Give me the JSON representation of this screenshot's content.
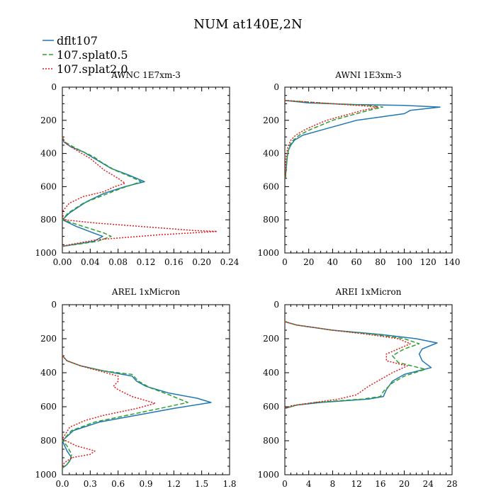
{
  "title": "NUM at140E,2N",
  "legend": [
    {
      "label": "dflt107",
      "color": "#1f77b4",
      "dash": "solid"
    },
    {
      "label": "107.splat0.5",
      "color": "#2ca02c",
      "dash": "dashed"
    },
    {
      "label": "107.splat2.0",
      "color": "#e31a1c",
      "dash": "dotted"
    }
  ],
  "chart_data": [
    {
      "type": "line",
      "title": "AWNC  1E7xm-3",
      "xlim": [
        0,
        0.24
      ],
      "ylim": [
        0,
        1000
      ],
      "y_inverted": true,
      "xticks": [
        "0.00",
        "0.04",
        "0.08",
        "0.12",
        "0.16",
        "0.20",
        "0.24"
      ],
      "yticks": [
        "0",
        "200",
        "400",
        "600",
        "800",
        "1000"
      ],
      "series": [
        {
          "name": "dflt107",
          "points": [
            [
              0,
              300
            ],
            [
              0.002,
              330
            ],
            [
              0.012,
              360
            ],
            [
              0.03,
              390
            ],
            [
              0.05,
              440
            ],
            [
              0.07,
              490
            ],
            [
              0.095,
              530
            ],
            [
              0.118,
              570
            ],
            [
              0.09,
              600
            ],
            [
              0.06,
              640
            ],
            [
              0.035,
              690
            ],
            [
              0.01,
              760
            ],
            [
              0,
              800
            ],
            [
              0.02,
              840
            ],
            [
              0.045,
              880
            ],
            [
              0.058,
              900
            ],
            [
              0.045,
              930
            ],
            [
              0.015,
              950
            ],
            [
              0,
              960
            ]
          ]
        },
        {
          "name": "107.splat0.5",
          "points": [
            [
              0,
              300
            ],
            [
              0.003,
              330
            ],
            [
              0.02,
              370
            ],
            [
              0.045,
              420
            ],
            [
              0.055,
              450
            ],
            [
              0.075,
              500
            ],
            [
              0.098,
              540
            ],
            [
              0.113,
              570
            ],
            [
              0.085,
              610
            ],
            [
              0.06,
              650
            ],
            [
              0.03,
              700
            ],
            [
              0.008,
              760
            ],
            [
              0,
              800
            ],
            [
              0.03,
              840
            ],
            [
              0.06,
              880
            ],
            [
              0.07,
              900
            ],
            [
              0.05,
              930
            ],
            [
              0.018,
              950
            ],
            [
              0,
              960
            ]
          ]
        },
        {
          "name": "107.splat2.0",
          "points": [
            [
              0,
              300
            ],
            [
              0.005,
              340
            ],
            [
              0.02,
              380
            ],
            [
              0.04,
              430
            ],
            [
              0.06,
              500
            ],
            [
              0.08,
              550
            ],
            [
              0.09,
              580
            ],
            [
              0.075,
              600
            ],
            [
              0.06,
              630
            ],
            [
              0.03,
              660
            ],
            [
              0.01,
              700
            ],
            [
              0,
              750
            ],
            [
              0.002,
              800
            ],
            [
              0.05,
              820
            ],
            [
              0.19,
              865
            ],
            [
              0.222,
              870
            ],
            [
              0.14,
              890
            ],
            [
              0.05,
              920
            ],
            [
              0.01,
              950
            ],
            [
              0,
              960
            ]
          ]
        }
      ]
    },
    {
      "type": "line",
      "title": "AWNI  1E3xm-3",
      "xlim": [
        0,
        140
      ],
      "ylim": [
        0,
        1000
      ],
      "y_inverted": true,
      "xticks": [
        "0",
        "20",
        "40",
        "60",
        "80",
        "100",
        "120",
        "140"
      ],
      "yticks": [
        "0",
        "200",
        "400",
        "600",
        "800",
        "1000"
      ],
      "series": [
        {
          "name": "dflt107",
          "points": [
            [
              0,
              80
            ],
            [
              20,
              95
            ],
            [
              60,
              105
            ],
            [
              100,
              110
            ],
            [
              130,
              120
            ],
            [
              105,
              140
            ],
            [
              100,
              160
            ],
            [
              80,
              180
            ],
            [
              60,
              200
            ],
            [
              45,
              230
            ],
            [
              30,
              260
            ],
            [
              15,
              290
            ],
            [
              8,
              320
            ],
            [
              5,
              350
            ],
            [
              3,
              380
            ],
            [
              2,
              420
            ],
            [
              1,
              500
            ],
            [
              0.5,
              550
            ]
          ]
        },
        {
          "name": "107.splat0.5",
          "points": [
            [
              0,
              80
            ],
            [
              40,
              100
            ],
            [
              70,
              110
            ],
            [
              82,
              120
            ],
            [
              70,
              140
            ],
            [
              55,
              170
            ],
            [
              40,
              200
            ],
            [
              30,
              230
            ],
            [
              20,
              260
            ],
            [
              12,
              290
            ],
            [
              7,
              320
            ],
            [
              4,
              350
            ],
            [
              3,
              380
            ],
            [
              2,
              420
            ],
            [
              1,
              500
            ],
            [
              0.5,
              550
            ]
          ]
        },
        {
          "name": "107.splat2.0",
          "points": [
            [
              0,
              80
            ],
            [
              40,
              100
            ],
            [
              70,
              115
            ],
            [
              78,
              120
            ],
            [
              65,
              140
            ],
            [
              50,
              170
            ],
            [
              35,
              200
            ],
            [
              25,
              230
            ],
            [
              16,
              260
            ],
            [
              9,
              290
            ],
            [
              5,
              320
            ],
            [
              3,
              350
            ],
            [
              2,
              380
            ],
            [
              1,
              420
            ],
            [
              0.5,
              500
            ],
            [
              0.3,
              550
            ]
          ]
        }
      ]
    },
    {
      "type": "line",
      "title": "AREL  1xMicron",
      "xlim": [
        0,
        1.8
      ],
      "ylim": [
        0,
        1000
      ],
      "y_inverted": true,
      "xticks": [
        "0.0",
        "0.3",
        "0.6",
        "0.9",
        "1.2",
        "1.5",
        "1.8"
      ],
      "yticks": [
        "0",
        "200",
        "400",
        "600",
        "800",
        "1000"
      ],
      "series": [
        {
          "name": "dflt107",
          "points": [
            [
              0,
              300
            ],
            [
              0.05,
              330
            ],
            [
              0.2,
              360
            ],
            [
              0.45,
              390
            ],
            [
              0.75,
              420
            ],
            [
              0.8,
              450
            ],
            [
              0.9,
              480
            ],
            [
              1.15,
              520
            ],
            [
              1.45,
              550
            ],
            [
              1.6,
              575
            ],
            [
              1.2,
              610
            ],
            [
              0.8,
              650
            ],
            [
              0.4,
              690
            ],
            [
              0.12,
              740
            ],
            [
              0,
              800
            ],
            [
              0.05,
              860
            ],
            [
              0.1,
              900
            ],
            [
              0.05,
              940
            ],
            [
              0,
              960
            ]
          ]
        },
        {
          "name": "107.splat0.5",
          "points": [
            [
              0,
              300
            ],
            [
              0.05,
              330
            ],
            [
              0.2,
              360
            ],
            [
              0.45,
              390
            ],
            [
              0.75,
              410
            ],
            [
              0.82,
              450
            ],
            [
              0.95,
              490
            ],
            [
              1.15,
              530
            ],
            [
              1.35,
              575
            ],
            [
              1.05,
              610
            ],
            [
              0.7,
              650
            ],
            [
              0.35,
              690
            ],
            [
              0.1,
              740
            ],
            [
              0,
              800
            ],
            [
              0.05,
              830
            ],
            [
              0.1,
              880
            ],
            [
              0.08,
              920
            ],
            [
              0.03,
              950
            ],
            [
              0,
              960
            ]
          ]
        },
        {
          "name": "107.splat2.0",
          "points": [
            [
              0,
              300
            ],
            [
              0.05,
              330
            ],
            [
              0.2,
              360
            ],
            [
              0.4,
              390
            ],
            [
              0.6,
              420
            ],
            [
              0.6,
              450
            ],
            [
              0.55,
              480
            ],
            [
              0.6,
              500
            ],
            [
              0.75,
              540
            ],
            [
              1.0,
              580
            ],
            [
              0.8,
              610
            ],
            [
              0.45,
              650
            ],
            [
              0.25,
              680
            ],
            [
              0.08,
              720
            ],
            [
              0,
              790
            ],
            [
              0.15,
              830
            ],
            [
              0.35,
              860
            ],
            [
              0.3,
              880
            ],
            [
              0.1,
              900
            ],
            [
              0.02,
              930
            ],
            [
              0,
              960
            ]
          ]
        }
      ]
    },
    {
      "type": "line",
      "title": "AREI  1xMicron",
      "xlim": [
        0,
        28
      ],
      "ylim": [
        0,
        1000
      ],
      "y_inverted": true,
      "xticks": [
        "0",
        "4",
        "8",
        "12",
        "16",
        "20",
        "24",
        "28"
      ],
      "yticks": [
        "0",
        "200",
        "400",
        "600",
        "800",
        "1000"
      ],
      "series": [
        {
          "name": "dflt107",
          "points": [
            [
              0,
              100
            ],
            [
              2,
              120
            ],
            [
              8,
              150
            ],
            [
              16,
              175
            ],
            [
              22,
              200
            ],
            [
              25.5,
              225
            ],
            [
              23,
              260
            ],
            [
              22.5,
              290
            ],
            [
              23,
              330
            ],
            [
              24.5,
              370
            ],
            [
              20,
              410
            ],
            [
              18,
              450
            ],
            [
              17,
              500
            ],
            [
              16.5,
              540
            ],
            [
              14,
              555
            ],
            [
              10,
              565
            ],
            [
              6,
              575
            ],
            [
              2,
              590
            ],
            [
              0,
              610
            ]
          ]
        },
        {
          "name": "107.splat0.5",
          "points": [
            [
              0,
              100
            ],
            [
              2,
              120
            ],
            [
              8,
              150
            ],
            [
              15,
              175
            ],
            [
              20,
              200
            ],
            [
              22.5,
              230
            ],
            [
              20,
              260
            ],
            [
              18,
              300
            ],
            [
              19,
              340
            ],
            [
              23.5,
              380
            ],
            [
              20,
              420
            ],
            [
              18,
              460
            ],
            [
              16.5,
              510
            ],
            [
              16,
              540
            ],
            [
              13,
              555
            ],
            [
              9,
              565
            ],
            [
              5,
              575
            ],
            [
              2,
              590
            ],
            [
              0,
              610
            ]
          ]
        },
        {
          "name": "107.splat2.0",
          "points": [
            [
              0,
              100
            ],
            [
              2,
              120
            ],
            [
              8,
              150
            ],
            [
              14,
              175
            ],
            [
              19,
              200
            ],
            [
              21,
              230
            ],
            [
              19,
              260
            ],
            [
              17,
              290
            ],
            [
              17,
              330
            ],
            [
              20.5,
              360
            ],
            [
              18,
              400
            ],
            [
              16,
              440
            ],
            [
              14,
              480
            ],
            [
              12,
              530
            ],
            [
              9,
              555
            ],
            [
              6,
              570
            ],
            [
              3,
              585
            ],
            [
              1,
              595
            ],
            [
              0,
              610
            ]
          ]
        }
      ]
    }
  ]
}
